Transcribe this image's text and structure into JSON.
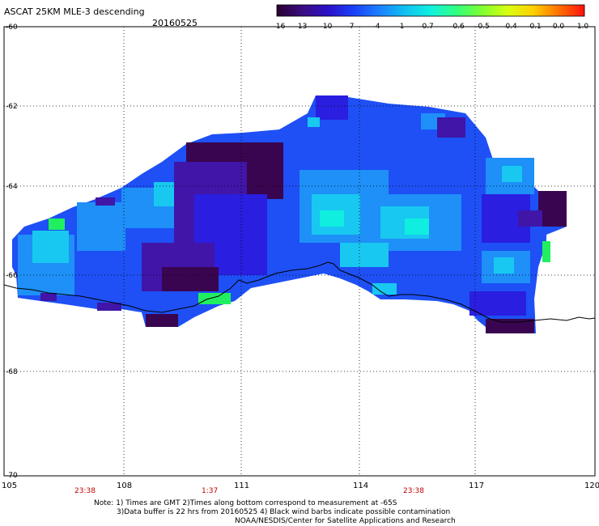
{
  "title": "ASCAT 25KM MLE-3 descending",
  "date": "20160525",
  "colorbar": {
    "labels": [
      "-16",
      "-13",
      "-10",
      "-7",
      "-4",
      "-1",
      "-0.7",
      "-0.6",
      "-0.5",
      "-0.4",
      "-0.1",
      "0.0",
      "1.0"
    ],
    "colors": [
      "#2a0030",
      "#3a0d80",
      "#2a10c8",
      "#1a40f8",
      "#1a80ff",
      "#10c0f0",
      "#10f0e0",
      "#30ff80",
      "#80ff30",
      "#d8ff10",
      "#ffd000",
      "#ff7000",
      "#ff1010"
    ]
  },
  "map": {
    "lon_ticks": [
      "105",
      "108",
      "111",
      "114",
      "117",
      "120"
    ],
    "lat_ticks": [
      "-60",
      "-62",
      "-64",
      "-66",
      "-68",
      "-70"
    ],
    "times": [
      "23:38",
      "1:37",
      "23:38"
    ],
    "palette": {
      "dark": "#3a0550",
      "purple": "#4015a8",
      "indigo": "#2a1ee0",
      "blue": "#1e50f5",
      "lightblue": "#1e90f8",
      "cyan": "#18c8f0",
      "aqua": "#10eee0",
      "green": "#20f060",
      "land_line": "#000000"
    }
  },
  "notes": {
    "line1": "Note: 1) Times are GMT 2)Times along bottom correspond to measurement at -65S",
    "line2": "3)Data buffer is 22 hrs from 20160525 4) Black wind barbs indicate possible contamination",
    "line3": "NOAA/NESDIS/Center for Satellite Applications and Research"
  }
}
